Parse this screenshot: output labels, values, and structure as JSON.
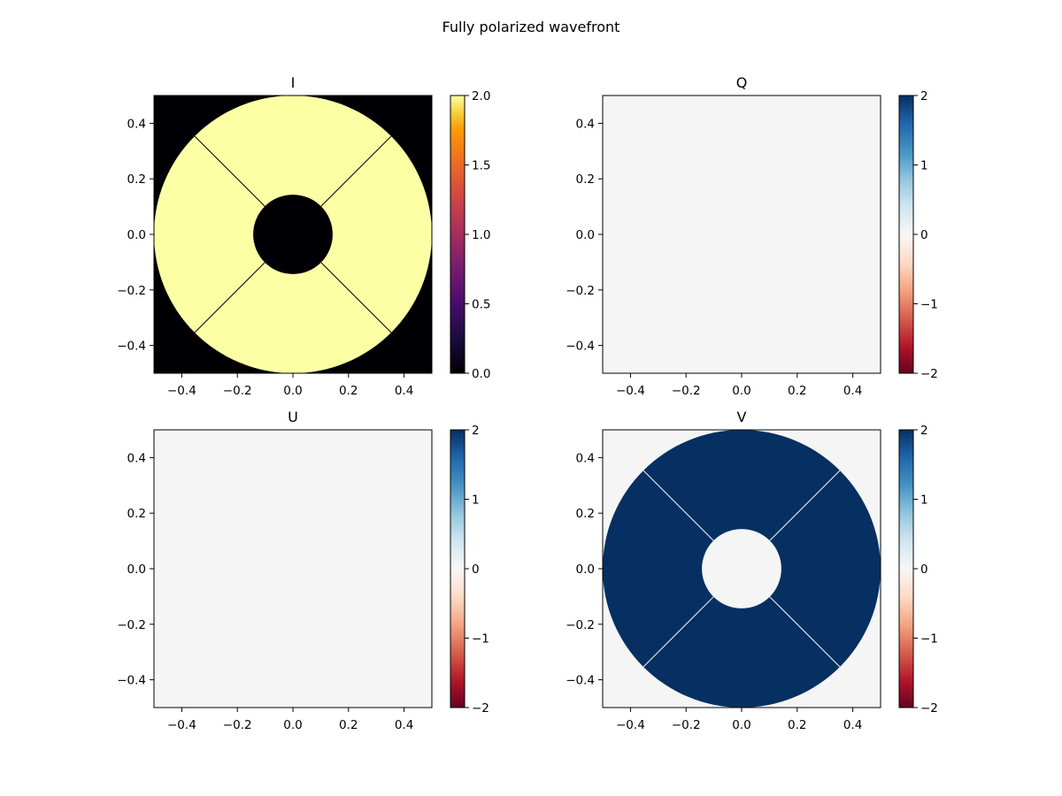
{
  "figure": {
    "title": "Fully polarized wavefront"
  },
  "chart_data": [
    {
      "type": "heatmap",
      "title": "I",
      "colormap": "inferno",
      "xlim": [
        -0.5,
        0.5
      ],
      "ylim": [
        -0.5,
        0.5
      ],
      "xticks": [
        -0.4,
        -0.2,
        0.0,
        0.2,
        0.4
      ],
      "yticks": [
        -0.4,
        -0.2,
        0.0,
        0.2,
        0.4
      ],
      "tick_labels": [
        "−0.4",
        "−0.2",
        "0.0",
        "0.2",
        "0.4"
      ],
      "pupil": {
        "outer_radius": 0.5,
        "inner_radius": 0.143,
        "spider_angles_deg": [
          45,
          135,
          225,
          315
        ]
      },
      "inside_value": 2.0,
      "outside_value": 0.0,
      "colorbar": {
        "range": [
          0,
          2
        ],
        "ticks": [
          0,
          0.5,
          1,
          1.5,
          2
        ],
        "tick_labels": [
          "0.0",
          "0.5",
          "1.0",
          "1.5",
          "2.0"
        ]
      }
    },
    {
      "type": "heatmap",
      "title": "Q",
      "colormap": "RdBu",
      "xlim": [
        -0.5,
        0.5
      ],
      "ylim": [
        -0.5,
        0.5
      ],
      "xticks": [
        -0.4,
        -0.2,
        0.0,
        0.2,
        0.4
      ],
      "yticks": [
        -0.4,
        -0.2,
        0.0,
        0.2,
        0.4
      ],
      "tick_labels": [
        "−0.4",
        "−0.2",
        "0.0",
        "0.2",
        "0.4"
      ],
      "pupil": null,
      "inside_value": 0,
      "outside_value": 0,
      "colorbar": {
        "range": [
          -2,
          2
        ],
        "ticks": [
          -2,
          -1,
          0,
          1,
          2
        ],
        "tick_labels": [
          "−2",
          "−1",
          "0",
          "1",
          "2"
        ]
      }
    },
    {
      "type": "heatmap",
      "title": "U",
      "colormap": "RdBu",
      "xlim": [
        -0.5,
        0.5
      ],
      "ylim": [
        -0.5,
        0.5
      ],
      "xticks": [
        -0.4,
        -0.2,
        0.0,
        0.2,
        0.4
      ],
      "yticks": [
        -0.4,
        -0.2,
        0.0,
        0.2,
        0.4
      ],
      "tick_labels": [
        "−0.4",
        "−0.2",
        "0.0",
        "0.2",
        "0.4"
      ],
      "pupil": null,
      "inside_value": 0,
      "outside_value": 0,
      "colorbar": {
        "range": [
          -2,
          2
        ],
        "ticks": [
          -2,
          -1,
          0,
          1,
          2
        ],
        "tick_labels": [
          "−2",
          "−1",
          "0",
          "1",
          "2"
        ]
      }
    },
    {
      "type": "heatmap",
      "title": "V",
      "colormap": "RdBu",
      "xlim": [
        -0.5,
        0.5
      ],
      "ylim": [
        -0.5,
        0.5
      ],
      "xticks": [
        -0.4,
        -0.2,
        0.0,
        0.2,
        0.4
      ],
      "yticks": [
        -0.4,
        -0.2,
        0.0,
        0.2,
        0.4
      ],
      "tick_labels": [
        "−0.4",
        "−0.2",
        "0.0",
        "0.2",
        "0.4"
      ],
      "pupil": {
        "outer_radius": 0.5,
        "inner_radius": 0.143,
        "spider_angles_deg": [
          45,
          135,
          225,
          315
        ]
      },
      "inside_value": 2,
      "outside_value": 0,
      "colorbar": {
        "range": [
          -2,
          2
        ],
        "ticks": [
          -2,
          -1,
          0,
          1,
          2
        ],
        "tick_labels": [
          "−2",
          "−1",
          "0",
          "1",
          "2"
        ]
      }
    }
  ]
}
